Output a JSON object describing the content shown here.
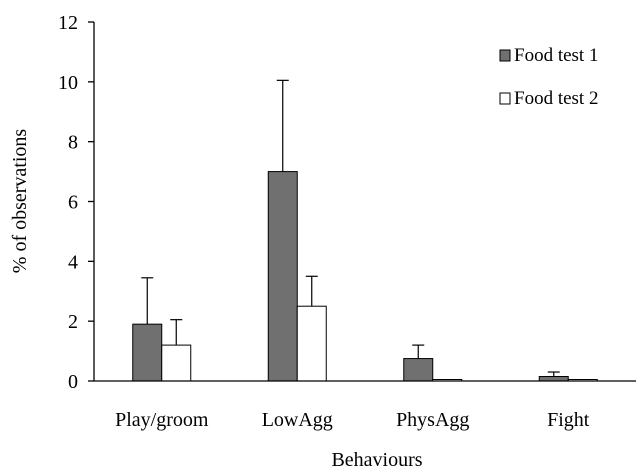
{
  "chart_data": {
    "type": "bar",
    "title": "",
    "xlabel": "Behaviours",
    "ylabel": "% of observations",
    "ylim": [
      0,
      12
    ],
    "yticks": [
      0,
      2,
      4,
      6,
      8,
      10,
      12
    ],
    "categories": [
      "Play/groom",
      "LowAgg",
      "PhysAgg",
      "Fight"
    ],
    "series": [
      {
        "name": "Food test 1",
        "color": "#707070",
        "values": [
          1.9,
          7.0,
          0.75,
          0.15
        ],
        "errors": [
          1.55,
          3.05,
          0.45,
          0.15
        ]
      },
      {
        "name": "Food test 2",
        "color": "#ffffff",
        "values": [
          1.2,
          2.5,
          0.05,
          0.05
        ],
        "errors": [
          0.85,
          1.0,
          0,
          0
        ]
      }
    ],
    "grid": false,
    "legend": "top-right"
  }
}
